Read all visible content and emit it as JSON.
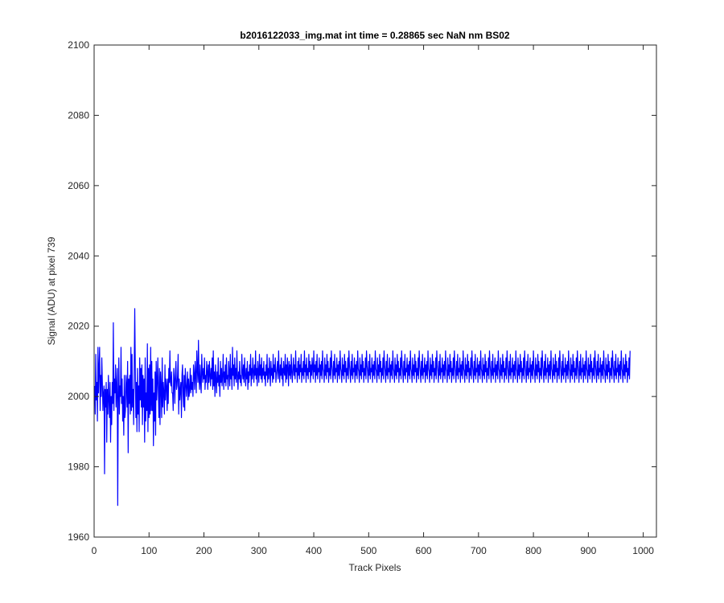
{
  "chart_data": {
    "type": "line",
    "title": "b2016122033_img.mat int time = 0.28865 sec  NaN nm BS02",
    "xlabel": "Track Pixels",
    "ylabel": "Signal (ADU) at pixel 739",
    "xlim": [
      0,
      1024
    ],
    "ylim": [
      1960,
      2100
    ],
    "x_ticks": [
      "0",
      "100",
      "200",
      "300",
      "400",
      "500",
      "600",
      "700",
      "800",
      "900",
      "1000"
    ],
    "y_ticks": [
      "1960",
      "1980",
      "2000",
      "2020",
      "2040",
      "2060",
      "2080",
      "2100"
    ],
    "grid": false,
    "series_color": "#0000ff",
    "series": [
      {
        "x_start": 1,
        "x_step": 1,
        "values": [
          2003,
          1995,
          2012,
          1999,
          2004,
          1993,
          2014,
          2001,
          2008,
          2014,
          1996,
          2006,
          2000,
          2011,
          2004,
          1996,
          2001,
          2003,
          1978,
          2002,
          1997,
          2004,
          1987,
          2002,
          1995,
          2006,
          1999,
          1994,
          2004,
          1987,
          2000,
          1992,
          2004,
          1998,
          2021,
          1996,
          2005,
          2001,
          2009,
          1997,
          2003,
          2008,
          1969,
          2001,
          2011,
          1995,
          2003,
          2000,
          2014,
          1998,
          2005,
          1993,
          2000,
          1989,
          2006,
          1994,
          1996,
          2006,
          2003,
          1997,
          2010,
          1984,
          2005,
          1998,
          2006,
          1995,
          2014,
          1996,
          2012,
          1997,
          2002,
          1992,
          2008,
          2025,
          2008,
          1994,
          2004,
          1990,
          2008,
          1995,
          2003,
          1990,
          2011,
          1999,
          2008,
          1997,
          2009,
          1992,
          2006,
          1997,
          2005,
          1987,
          2011,
          1993,
          2001,
          1996,
          2015,
          1990,
          2008,
          1994,
          2009,
          1995,
          2014,
          1996,
          2010,
          1996,
          2005,
          1986,
          2001,
          1993,
          2007,
          1989,
          2010,
          1999,
          2004,
          2011,
          2001,
          1994,
          2008,
          1992,
          2007,
          2003,
          1994,
          2011,
          1997,
          2004,
          2001,
          1995,
          2009,
          1999,
          2005,
          2003,
          1996,
          2005,
          1998,
          2008,
          2004,
          2013,
          2004,
          2003,
          2007,
          2001,
          2001,
          1996,
          2008,
          2005,
          1998,
          2006,
          2010,
          2002,
          2003,
          2006,
          2012,
          1995,
          2005,
          1999,
          2002,
          2004,
          1994,
          2006,
          2009,
          2001,
          1997,
          2006,
          1996,
          2008,
          2004,
          2000,
          2003,
          2007,
          1999,
          2005,
          2000,
          2002,
          2008,
          2001,
          2006,
          2002,
          2004,
          2000,
          2009,
          2006,
          2002,
          2010,
          2006,
          2001,
          2013,
          2008,
          2004,
          2016,
          2005,
          2002,
          2009,
          2004,
          2001,
          2012,
          2007,
          2004,
          2008,
          2005,
          2011,
          2002,
          2006,
          2004,
          2010,
          2007,
          2002,
          2009,
          2004,
          2010,
          2006,
          2003,
          2008,
          2005,
          2011,
          2002,
          2013,
          2003,
          2007,
          2000,
          2009,
          2005,
          2001,
          2007,
          2004,
          2011,
          2003,
          2006,
          2000,
          2010,
          2004,
          2008,
          2003,
          2006,
          2012,
          2002,
          2007,
          2004,
          2009,
          2003,
          2011,
          2005,
          2006,
          2002,
          2010,
          2007,
          2003,
          2012,
          2005,
          2008,
          2002,
          2014,
          2006,
          2009,
          2003,
          2011,
          2005,
          2008,
          2004,
          2013,
          2006,
          2002,
          2007,
          2005,
          2010,
          2004,
          2006,
          2003,
          2012,
          2007,
          2005,
          2009,
          2004,
          2011,
          2006,
          2003,
          2008,
          2005,
          2010,
          2002,
          2007,
          2004,
          2009,
          2006,
          2012,
          2003,
          2008,
          2005,
          2011,
          2007,
          2004,
          2009,
          2006,
          2013,
          2005,
          2008,
          2003,
          2010,
          2007,
          2004,
          2012,
          2006,
          2009,
          2005,
          2011,
          2004,
          2008,
          2006,
          2010,
          2005,
          2007,
          2003,
          2009,
          2006,
          2012,
          2004,
          2008,
          2005,
          2011,
          2007,
          2003,
          2010,
          2006,
          2008,
          2004,
          2012,
          2005,
          2009,
          2007,
          2011,
          2004,
          2006,
          2008,
          2010,
          2005,
          2013,
          2007,
          2004,
          2009,
          2006,
          2011,
          2005,
          2008,
          2003,
          2010,
          2007,
          2006,
          2012,
          2004,
          2009,
          2005,
          2011,
          2008,
          2003,
          2010,
          2006,
          2009,
          2005,
          2012,
          2007,
          2004,
          2008,
          2011,
          2006,
          2009,
          2005,
          2013,
          2007,
          2008,
          2004,
          2010,
          2006,
          2011,
          2005,
          2009,
          2007,
          2012,
          2004,
          2008,
          2006,
          2010,
          2005,
          2013,
          2007,
          2009,
          2004,
          2011,
          2006,
          2008,
          2005,
          2012,
          2007,
          2010,
          2004,
          2009,
          2006,
          2011,
          2008,
          2005,
          2013,
          2007,
          2009,
          2004,
          2010,
          2006,
          2012,
          2005,
          2008,
          2007,
          2011,
          2004,
          2009,
          2006,
          2010,
          2005,
          2013,
          2008,
          2007,
          2004,
          2011,
          2006,
          2009,
          2005,
          2012,
          2007,
          2010,
          2004,
          2008,
          2006,
          2011,
          2005,
          2013,
          2009,
          2007,
          2004,
          2010,
          2006,
          2012,
          2005,
          2008,
          2007,
          2011,
          2004,
          2009,
          2006,
          2010,
          2005,
          2013,
          2008,
          2007,
          2004,
          2011,
          2006,
          2009,
          2005,
          2012,
          2007,
          2010,
          2004,
          2008,
          2006,
          2011,
          2005,
          2013,
          2009,
          2007,
          2004,
          2010,
          2006,
          2012,
          2005,
          2008,
          2007,
          2011,
          2004,
          2009,
          2006,
          2010,
          2005,
          2013,
          2008,
          2007,
          2004,
          2011,
          2006,
          2009,
          2005,
          2012,
          2007,
          2010,
          2004,
          2008,
          2006,
          2011,
          2005,
          2013,
          2009,
          2007,
          2004,
          2010,
          2006,
          2012,
          2005,
          2008,
          2007,
          2011,
          2004,
          2009,
          2006,
          2010,
          2005,
          2013,
          2008,
          2007,
          2004,
          2011,
          2006,
          2009,
          2005,
          2012,
          2007,
          2010,
          2004,
          2008,
          2006,
          2011,
          2005,
          2013,
          2009,
          2007,
          2004,
          2010,
          2006,
          2012,
          2005,
          2008,
          2007,
          2011,
          2004,
          2009,
          2006,
          2010,
          2005,
          2013,
          2008,
          2007,
          2004,
          2011,
          2006,
          2009,
          2005,
          2012,
          2007,
          2010,
          2004,
          2008,
          2006,
          2011,
          2005,
          2013,
          2009,
          2007,
          2004,
          2010,
          2006,
          2012,
          2005,
          2008,
          2007,
          2011,
          2004,
          2009,
          2006,
          2010,
          2005,
          2013,
          2008,
          2007,
          2004,
          2011,
          2006,
          2009,
          2005,
          2012,
          2007,
          2010,
          2004,
          2008,
          2006,
          2011,
          2005,
          2013,
          2009,
          2007,
          2004,
          2010,
          2006,
          2012,
          2005,
          2008,
          2007,
          2011,
          2004,
          2009,
          2006,
          2010,
          2005,
          2013,
          2008,
          2007,
          2004,
          2011,
          2006,
          2009,
          2005,
          2012,
          2007,
          2010,
          2004,
          2008,
          2006,
          2011,
          2005,
          2013,
          2009,
          2007,
          2004,
          2010,
          2006,
          2012,
          2005,
          2008,
          2007,
          2011,
          2004,
          2009,
          2006,
          2010,
          2005,
          2013,
          2008,
          2007,
          2004,
          2011,
          2006,
          2009,
          2005,
          2012,
          2007,
          2010,
          2004,
          2008,
          2006,
          2011,
          2005,
          2013,
          2009,
          2007,
          2004,
          2010,
          2006,
          2012,
          2005,
          2008,
          2007,
          2011,
          2004,
          2009,
          2006,
          2010,
          2005,
          2013,
          2008,
          2007,
          2004,
          2011,
          2006,
          2009,
          2005,
          2012,
          2007,
          2010,
          2004,
          2008,
          2006,
          2011,
          2005,
          2013,
          2009,
          2007,
          2004,
          2010,
          2006,
          2012,
          2005,
          2008,
          2007,
          2011,
          2004,
          2009,
          2006,
          2010,
          2005,
          2013,
          2008,
          2007,
          2004,
          2011,
          2006,
          2009,
          2005,
          2012,
          2007,
          2010,
          2004,
          2008,
          2006,
          2011,
          2005,
          2013,
          2009,
          2007,
          2004,
          2010,
          2006,
          2012,
          2005,
          2008,
          2007,
          2011,
          2004,
          2009,
          2006,
          2010,
          2005,
          2013,
          2008,
          2007,
          2004,
          2011,
          2006,
          2009,
          2005,
          2012,
          2007,
          2010,
          2004,
          2008,
          2006,
          2011,
          2005,
          2013,
          2009,
          2007,
          2004,
          2010,
          2006,
          2012,
          2005,
          2008,
          2007,
          2011,
          2004,
          2009,
          2006,
          2010,
          2005,
          2013,
          2008,
          2007,
          2004,
          2011,
          2006,
          2009,
          2005,
          2012,
          2007,
          2010,
          2004,
          2008,
          2006,
          2011,
          2005,
          2013,
          2009,
          2007,
          2004,
          2010,
          2006,
          2012,
          2005,
          2008,
          2007,
          2011,
          2004,
          2009,
          2006,
          2010,
          2005,
          2013,
          2008,
          2007,
          2004,
          2011,
          2006,
          2009,
          2005,
          2012,
          2007,
          2010,
          2004,
          2008,
          2006,
          2011,
          2005,
          2013,
          2009,
          2007,
          2004,
          2010,
          2006,
          2012,
          2005,
          2008,
          2007,
          2011,
          2004,
          2009,
          2006,
          2010,
          2005,
          2013,
          2008,
          2007,
          2004,
          2011,
          2006,
          2009,
          2005,
          2012,
          2007,
          2010,
          2004,
          2008,
          2006,
          2011,
          2005,
          2013,
          2009,
          2007,
          2004,
          2010,
          2006,
          2012,
          2005,
          2008,
          2007,
          2011,
          2004,
          2009,
          2006,
          2010,
          2005,
          2013,
          2008,
          2007,
          2004,
          2011,
          2006,
          2009,
          2005,
          2012,
          2007,
          2010,
          2004,
          2008,
          2006,
          2011,
          2005,
          2013,
          2009,
          2007,
          2004,
          2010,
          2006,
          2012,
          2005,
          2008,
          2007,
          2011,
          2004,
          2009,
          2006,
          2010,
          2005,
          2013,
          2008,
          2007,
          2004,
          2011,
          2006,
          2009,
          2005,
          2012,
          2007,
          2010,
          2004,
          2008,
          2006,
          2011,
          2005,
          2013,
          2009,
          2007,
          2004,
          2010,
          2006,
          2012,
          2005,
          2008,
          2007,
          2011,
          2004,
          2009,
          2006,
          2010,
          2005,
          2013,
          2008,
          2007,
          2004,
          2011,
          2006,
          2009,
          2005,
          2012,
          2007,
          2010,
          2004,
          2008,
          2006,
          2011,
          2005,
          2013,
          2009,
          2007,
          2004,
          2010,
          2006,
          2012,
          2005,
          2008,
          2007,
          2011,
          2004,
          2009,
          2006,
          2010,
          2005,
          2013,
          2008,
          2007,
          2004,
          2011,
          2006,
          2009,
          2005,
          2012,
          2007,
          2010,
          2004,
          2008,
          2006,
          2011,
          2005,
          2013
        ]
      }
    ]
  }
}
